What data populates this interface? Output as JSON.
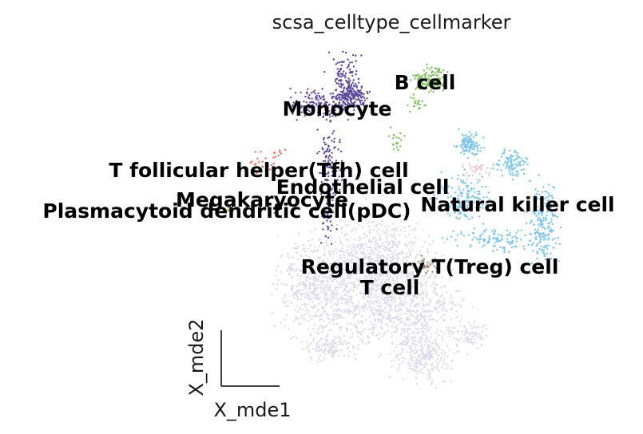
{
  "chart_data": {
    "type": "scatter",
    "title": "scsa_celltype_cellmarker",
    "xlabel": "X_mde1",
    "ylabel": "X_mde2",
    "grid": false,
    "legend": "on data",
    "clusters": [
      {
        "name": "T cell",
        "color": "#dcdaeb",
        "label": "T cell"
      },
      {
        "name": "Monocyte",
        "color": "#5b4a9b",
        "label": "Monocyte"
      },
      {
        "name": "B cell",
        "color": "#7fbf5f",
        "label": "B cell"
      },
      {
        "name": "Natural killer cell",
        "color": "#7cc3ec",
        "label": "Natural killer cell"
      },
      {
        "name": "T follicular helper(Tfh) cell",
        "color": "#e8735a",
        "label": "T follicular helper(Tfh) cell"
      },
      {
        "name": "Endothelial cell",
        "color": "#e6c8d2",
        "label": "Endothelial cell"
      },
      {
        "name": "Megakaryocyte",
        "color": "#b08a3a",
        "label": "Megakaryocyte"
      },
      {
        "name": "Plasmacytoid dendritic cell(pDC)",
        "color": "#8c7a5a",
        "label": "Plasmacytoid dendritic cell(pDC)"
      },
      {
        "name": "Regulatory T(Treg) cell",
        "color": "#9a8e74",
        "label": "Regulatory T(Treg) cell"
      }
    ]
  }
}
